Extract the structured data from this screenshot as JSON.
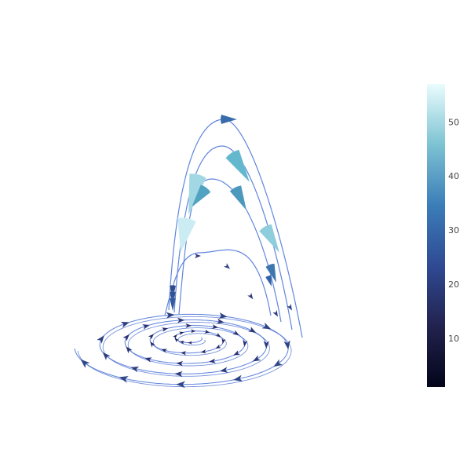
{
  "chart_data": {
    "type": "3d-streamtube-cone",
    "title": "",
    "colorscale": {
      "name": "ice",
      "stops": [
        [
          0.0,
          "#03051a"
        ],
        [
          0.25,
          "#2b2d6e"
        ],
        [
          0.5,
          "#3566a8"
        ],
        [
          0.75,
          "#5ab3c9"
        ],
        [
          1.0,
          "#eafcfd"
        ]
      ],
      "range": [
        1,
        57
      ],
      "ticks": [
        10,
        20,
        30,
        40,
        50
      ]
    },
    "series": [
      {
        "role": "spiral-base",
        "turns": 4.5,
        "magnitude_range": [
          10,
          22
        ]
      },
      {
        "role": "rising-streamline",
        "peak_magnitude": 50,
        "count": 4
      }
    ]
  }
}
